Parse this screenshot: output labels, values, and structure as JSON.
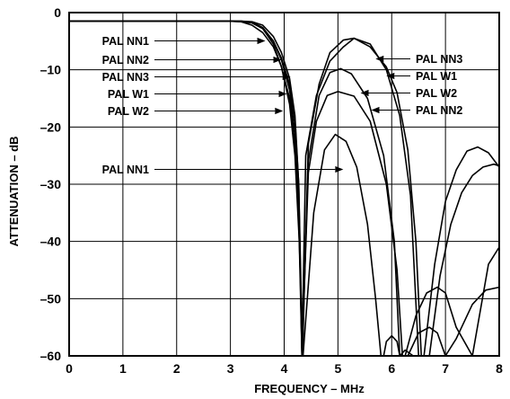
{
  "chart_data": {
    "type": "line",
    "title": "",
    "xlabel": "FREQUENCY – MHz",
    "ylabel": "ATTENUATION – dB",
    "xlim": [
      0,
      8
    ],
    "ylim": [
      -60,
      0
    ],
    "grid": true,
    "x_ticks": [
      "0",
      "1",
      "2",
      "3",
      "4",
      "5",
      "6",
      "7",
      "8"
    ],
    "y_ticks": [
      "0",
      "–10",
      "–20",
      "–30",
      "–40",
      "–50",
      "–60"
    ],
    "series": [
      {
        "name": "PAL NN1",
        "x": [
          0,
          1,
          2,
          2.8,
          3.0,
          3.2,
          3.4,
          3.6,
          3.8,
          3.95,
          4.1,
          4.2,
          4.28,
          4.35,
          4.55,
          4.75,
          4.95,
          5.15,
          5.35,
          5.55,
          5.7,
          5.8
        ],
        "y": [
          -1.5,
          -1.5,
          -1.5,
          -1.5,
          -1.5,
          -1.6,
          -2.2,
          -3.5,
          -6.0,
          -9.5,
          -16,
          -25,
          -40,
          -60,
          -35,
          -24,
          -21.3,
          -22.5,
          -27,
          -37,
          -50,
          -60
        ]
      },
      {
        "name": "PAL NN2",
        "x": [
          0,
          1,
          2,
          2.8,
          3.0,
          3.2,
          3.4,
          3.6,
          3.8,
          3.95,
          4.1,
          4.2,
          4.27,
          4.33,
          4.45,
          4.6,
          4.8,
          5.0,
          5.3,
          5.6,
          5.9,
          6.1,
          6.2
        ],
        "y": [
          -1.5,
          -1.5,
          -1.5,
          -1.5,
          -1.5,
          -1.5,
          -1.7,
          -2.6,
          -5.0,
          -8.3,
          -13.5,
          -21,
          -33,
          -60,
          -28,
          -19,
          -14.5,
          -13.8,
          -14.6,
          -19,
          -30,
          -45,
          -60
        ]
      },
      {
        "name": "PAL NN3",
        "x": [
          0,
          1,
          2,
          2.8,
          3.0,
          3.2,
          3.4,
          3.6,
          3.8,
          3.95,
          4.1,
          4.2,
          4.27,
          4.33,
          4.4,
          4.6,
          4.85,
          5.1,
          5.3,
          5.6,
          5.9,
          6.15,
          6.35,
          6.5
        ],
        "y": [
          -1.5,
          -1.5,
          -1.5,
          -1.5,
          -1.5,
          -1.5,
          -1.6,
          -2.2,
          -4.2,
          -7.0,
          -11.5,
          -18,
          -30,
          -60,
          -25,
          -14.5,
          -8.5,
          -6.0,
          -4.5,
          -5.5,
          -10,
          -18,
          -32,
          -60
        ]
      },
      {
        "name": "PAL W1",
        "x": [
          0,
          1,
          2,
          2.8,
          3.0,
          3.2,
          3.4,
          3.6,
          3.8,
          3.95,
          4.1,
          4.2,
          4.27,
          4.34,
          4.45,
          4.65,
          4.85,
          5.1,
          5.3,
          5.6,
          5.9,
          6.1,
          6.3,
          6.45,
          6.55
        ],
        "y": [
          -1.5,
          -1.5,
          -1.5,
          -1.5,
          -1.5,
          -1.6,
          -1.8,
          -2.8,
          -5.0,
          -8.0,
          -12.5,
          -19,
          -30,
          -60,
          -23,
          -12.5,
          -7.0,
          -4.8,
          -4.5,
          -6.0,
          -9.5,
          -14,
          -24,
          -40,
          -60
        ]
      },
      {
        "name": "PAL W2",
        "x": [
          0,
          1,
          2,
          2.8,
          3.0,
          3.2,
          3.4,
          3.6,
          3.8,
          3.95,
          4.1,
          4.2,
          4.27,
          4.33,
          4.45,
          4.65,
          4.85,
          5.05,
          5.25,
          5.55,
          5.85,
          6.05,
          6.15
        ],
        "y": [
          -1.5,
          -1.5,
          -1.5,
          -1.5,
          -1.5,
          -1.5,
          -1.7,
          -2.8,
          -5.5,
          -9.5,
          -15,
          -23,
          -36,
          -60,
          -26,
          -14.5,
          -10.5,
          -9.8,
          -10.7,
          -15,
          -25,
          -40,
          -60
        ]
      },
      {
        "name": "PAL NN3",
        "x": [
          6.6,
          6.8,
          7.0,
          7.2,
          7.4,
          7.6,
          7.8,
          8.0
        ],
        "y": [
          -60,
          -44,
          -33,
          -27.5,
          -24.2,
          -23.5,
          -24.5,
          -27
        ]
      },
      {
        "name": "PAL W1",
        "x": [
          6.7,
          6.9,
          7.1,
          7.3,
          7.5,
          7.7,
          7.9,
          8.0
        ],
        "y": [
          -60,
          -46,
          -37,
          -31.5,
          -28.5,
          -27,
          -26.5,
          -26.8
        ]
      },
      {
        "name": "PAL W2",
        "x": [
          6.25,
          6.45,
          6.65,
          6.85,
          7.0,
          7.2,
          7.5,
          7.8,
          8.0
        ],
        "y": [
          -60,
          -53,
          -49,
          -48,
          -49,
          -55,
          -60,
          -44,
          -41
        ]
      },
      {
        "name": "PAL NN2",
        "x": [
          6.3,
          6.5,
          6.7,
          6.85,
          7.0,
          7.2,
          7.5,
          7.75,
          8.0
        ],
        "y": [
          -60,
          -56,
          -55,
          -56,
          -60,
          -57,
          -51,
          -48.5,
          -48
        ]
      },
      {
        "name": "PAL NN1",
        "x": [
          5.85,
          5.9,
          6.0,
          6.1,
          6.15,
          6.25,
          6.4
        ],
        "y": [
          -60,
          -57.5,
          -56.5,
          -57.5,
          -60,
          -59,
          -60
        ]
      }
    ],
    "annotations": [
      {
        "text": "PAL NN1",
        "side": "left",
        "row": 1,
        "target": [
          3.65,
          -4.8
        ]
      },
      {
        "text": "PAL NN2",
        "side": "left",
        "row": 2,
        "target": [
          3.95,
          -8.0
        ]
      },
      {
        "text": "PAL NN3",
        "side": "left",
        "row": 3,
        "target": [
          4.12,
          -11.0
        ]
      },
      {
        "text": "PAL W1",
        "side": "left",
        "row": 4,
        "target": [
          4.05,
          -14.5
        ]
      },
      {
        "text": "PAL W2",
        "side": "left",
        "row": 5,
        "target": [
          3.98,
          -17.0
        ]
      },
      {
        "text": "PAL NN1",
        "side": "left",
        "row": 6,
        "target": [
          5.1,
          -27.2
        ]
      },
      {
        "text": "PAL NN3",
        "side": "right",
        "row": 1,
        "target": [
          5.7,
          -8.0
        ]
      },
      {
        "text": "PAL W1",
        "side": "right",
        "row": 2,
        "target": [
          5.9,
          -11.0
        ]
      },
      {
        "text": "PAL W2",
        "side": "right",
        "row": 3,
        "target": [
          5.42,
          -14.0
        ]
      },
      {
        "text": "PAL NN2",
        "side": "right",
        "row": 4,
        "target": [
          5.62,
          -17.0
        ]
      }
    ]
  }
}
